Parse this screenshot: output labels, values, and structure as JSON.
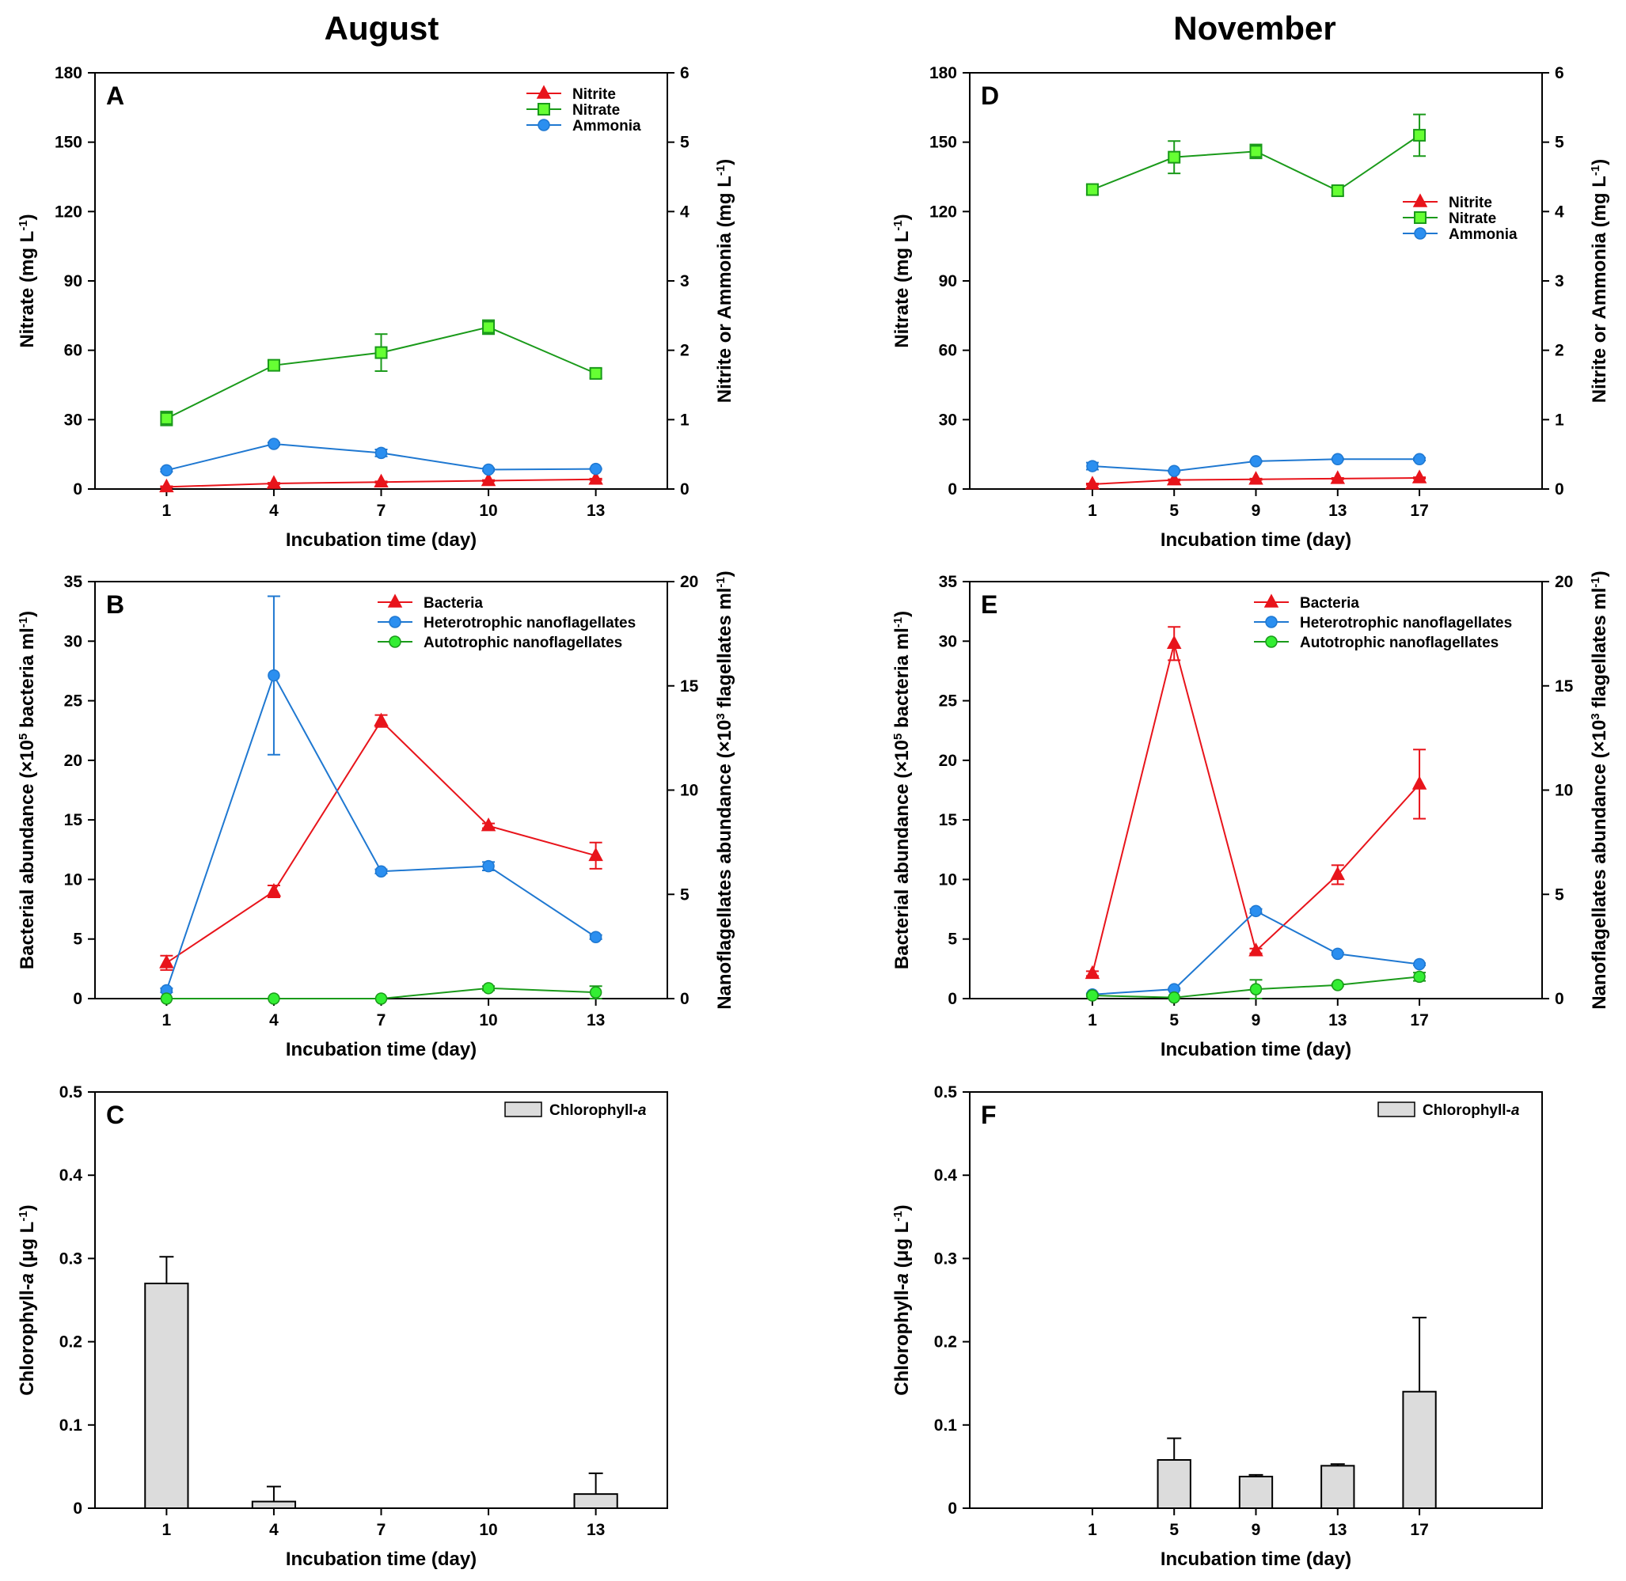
{
  "columns": [
    {
      "title": "August"
    },
    {
      "title": "November"
    }
  ],
  "chart_data": [
    {
      "id": "A",
      "type": "line",
      "xlabel": "Incubation time (day)",
      "ylabel": "Nitrate (mg L",
      "ylabel_sup": "-1",
      "ylabel_end": ")",
      "y2label": "Nitrite or Ammonia (mg L",
      "y2label_sup": "-1",
      "y2label_end": ")",
      "xlim": [
        -1,
        15
      ],
      "x": [
        1,
        4,
        7,
        10,
        13
      ],
      "ylim": [
        0,
        180
      ],
      "yticks": [
        0,
        30,
        60,
        90,
        120,
        150,
        180
      ],
      "y2lim": [
        0,
        6
      ],
      "y2ticks": [
        0,
        1,
        2,
        3,
        4,
        5,
        6
      ],
      "legend_position": "top-right",
      "series": [
        {
          "name": "Nitrite",
          "axis": "y2",
          "color": "#e8141b",
          "marker": "triangle",
          "values": [
            0.03,
            0.08,
            0.1,
            0.12,
            0.14
          ],
          "errors": [
            0.01,
            0.01,
            0.01,
            0.01,
            0.01
          ]
        },
        {
          "name": "Nitrate",
          "axis": "y",
          "color": "#1a9a1a",
          "marker_fill": "#66ff33",
          "marker": "square",
          "values": [
            30.5,
            53.5,
            59,
            70,
            50
          ],
          "errors": [
            3,
            2,
            8,
            3,
            2
          ]
        },
        {
          "name": "Ammonia",
          "axis": "y2",
          "color": "#1f78d1",
          "marker_fill": "#2b8ff0",
          "marker": "circle",
          "values": [
            0.27,
            0.65,
            0.52,
            0.28,
            0.29
          ],
          "errors": [
            0.02,
            0.02,
            0.05,
            0.02,
            0.01
          ]
        }
      ]
    },
    {
      "id": "B",
      "type": "line",
      "xlabel": "Incubation time (day)",
      "ylabel": "Bacterial abundance (×10",
      "ylabel_sup": "5",
      "ylabel_end": " bacteria ml",
      "ylabel_sup2": "-1",
      "ylabel_end2": ")",
      "y2label": "Nanoflagellates abundance (×10",
      "y2label_sup": "3",
      "y2label_end": " flagellates ml",
      "y2label_sup2": "-1",
      "y2label_end2": ")",
      "xlim": [
        -1,
        15
      ],
      "x": [
        1,
        4,
        7,
        10,
        13
      ],
      "ylim": [
        0,
        35
      ],
      "yticks": [
        0,
        5,
        10,
        15,
        20,
        25,
        30,
        35
      ],
      "y2lim": [
        0,
        20
      ],
      "y2ticks": [
        0,
        5,
        10,
        15,
        20
      ],
      "legend_position": "top-right",
      "series": [
        {
          "name": "Bacteria",
          "axis": "y",
          "color": "#e8141b",
          "marker": "triangle",
          "values": [
            3,
            9,
            23.3,
            14.5,
            12
          ],
          "errors": [
            0.6,
            0.5,
            0.5,
            0.2,
            1.1
          ]
        },
        {
          "name": "Heterotrophic nanoflagellates",
          "axis": "y2",
          "color": "#1f78d1",
          "marker_fill": "#2b8ff0",
          "marker": "circle",
          "values": [
            0.4,
            15.5,
            6.1,
            6.35,
            2.95
          ],
          "errors": [
            0.1,
            3.8,
            0.1,
            0.2,
            0.1
          ]
        },
        {
          "name": "Autotrophic nanoflagellates",
          "axis": "y2",
          "color": "#1a9a1a",
          "marker_fill": "#33ee33",
          "marker": "circle",
          "values": [
            0,
            0,
            0,
            0.5,
            0.3
          ],
          "errors": [
            0,
            0,
            0,
            0.1,
            0.3
          ]
        }
      ]
    },
    {
      "id": "C",
      "type": "bar",
      "xlabel": "Incubation time (day)",
      "ylabel": "Chlorophyll-",
      "ylabel_italic": "a",
      "ylabel_end": " (μg L",
      "ylabel_sup": "-1",
      "ylabel_end2": ")",
      "xlim": [
        -1,
        15
      ],
      "x": [
        1,
        4,
        7,
        10,
        13
      ],
      "ylim": [
        0,
        0.5
      ],
      "yticks": [
        0,
        0.1,
        0.2,
        0.3,
        0.4,
        0.5
      ],
      "legend_position": "top-right",
      "series": [
        {
          "name": "Chlorophyll-",
          "name_italic": "a",
          "color": "#dcdcdc",
          "values": [
            0.27,
            0.008,
            0,
            0,
            0.017
          ],
          "errors": [
            0.032,
            0.018,
            0,
            0,
            0.025
          ]
        }
      ]
    },
    {
      "id": "D",
      "type": "line",
      "xlabel": "Incubation time (day)",
      "ylabel": "Nitrate (mg L",
      "ylabel_sup": "-1",
      "ylabel_end": ")",
      "y2label": "Nitrite or Ammonia (mg L",
      "y2label_sup": "-1",
      "y2label_end": ")",
      "xlim": [
        -5,
        23
      ],
      "x": [
        1,
        5,
        9,
        13,
        17
      ],
      "ylim": [
        0,
        180
      ],
      "yticks": [
        0,
        30,
        60,
        90,
        120,
        150,
        180
      ],
      "y2lim": [
        0,
        6
      ],
      "y2ticks": [
        0,
        1,
        2,
        3,
        4,
        5,
        6
      ],
      "legend_position": "upper-right",
      "series": [
        {
          "name": "Nitrite",
          "axis": "y2",
          "color": "#e8141b",
          "marker": "triangle",
          "values": [
            0.07,
            0.13,
            0.14,
            0.15,
            0.16
          ],
          "errors": [
            0.01,
            0.01,
            0.01,
            0.01,
            0.01
          ]
        },
        {
          "name": "Nitrate",
          "axis": "y",
          "color": "#1a9a1a",
          "marker_fill": "#66ff33",
          "marker": "square",
          "values": [
            129.5,
            143.5,
            146,
            129,
            153
          ],
          "errors": [
            2,
            7,
            3,
            2,
            9
          ]
        },
        {
          "name": "Ammonia",
          "axis": "y2",
          "color": "#1f78d1",
          "marker_fill": "#2b8ff0",
          "marker": "circle",
          "values": [
            0.33,
            0.26,
            0.4,
            0.43,
            0.43
          ],
          "errors": [
            0.05,
            0.01,
            0.01,
            0.01,
            0.02
          ]
        }
      ]
    },
    {
      "id": "E",
      "type": "line",
      "xlabel": "Incubation time (day)",
      "ylabel": "Bacterial abundance (×10",
      "ylabel_sup": "5",
      "ylabel_end": " bacteria ml",
      "ylabel_sup2": "-1",
      "ylabel_end2": ")",
      "y2label": "Nanoflagellates abundance (×10",
      "y2label_sup": "3",
      "y2label_end": " flagellates ml",
      "y2label_sup2": "-1",
      "y2label_end2": ")",
      "xlim": [
        -5,
        23
      ],
      "x": [
        1,
        5,
        9,
        13,
        17
      ],
      "ylim": [
        0,
        35
      ],
      "yticks": [
        0,
        5,
        10,
        15,
        20,
        25,
        30,
        35
      ],
      "y2lim": [
        0,
        20
      ],
      "y2ticks": [
        0,
        5,
        10,
        15,
        20
      ],
      "legend_position": "top-right",
      "series": [
        {
          "name": "Bacteria",
          "axis": "y",
          "color": "#e8141b",
          "marker": "triangle",
          "values": [
            2.1,
            29.8,
            4,
            10.4,
            18
          ],
          "errors": [
            0.2,
            1.4,
            0.2,
            0.8,
            2.9
          ]
        },
        {
          "name": "Heterotrophic nanoflagellates",
          "axis": "y2",
          "color": "#1f78d1",
          "marker_fill": "#2b8ff0",
          "marker": "circle",
          "values": [
            0.2,
            0.45,
            4.2,
            2.15,
            1.65
          ],
          "errors": [
            0.05,
            0.05,
            0.1,
            0.05,
            0.05
          ]
        },
        {
          "name": "Autotrophic nanoflagellates",
          "axis": "y2",
          "color": "#1a9a1a",
          "marker_fill": "#33ee33",
          "marker": "circle",
          "values": [
            0.15,
            0.05,
            0.45,
            0.65,
            1.05
          ],
          "errors": [
            0.05,
            0.02,
            0.45,
            0.05,
            0.2
          ]
        }
      ]
    },
    {
      "id": "F",
      "type": "bar",
      "xlabel": "Incubation time (day)",
      "ylabel": "Chlorophyll-",
      "ylabel_italic": "a",
      "ylabel_end": " (μg L",
      "ylabel_sup": "-1",
      "ylabel_end2": ")",
      "xlim": [
        -5,
        23
      ],
      "x": [
        1,
        5,
        9,
        13,
        17
      ],
      "ylim": [
        0,
        0.5
      ],
      "yticks": [
        0,
        0.1,
        0.2,
        0.3,
        0.4,
        0.5
      ],
      "legend_position": "top-right",
      "series": [
        {
          "name": "Chlorophyll-",
          "name_italic": "a",
          "color": "#dcdcdc",
          "values": [
            0,
            0.058,
            0.038,
            0.051,
            0.14
          ],
          "errors": [
            0,
            0.026,
            0.002,
            0.002,
            0.089
          ]
        }
      ]
    }
  ]
}
